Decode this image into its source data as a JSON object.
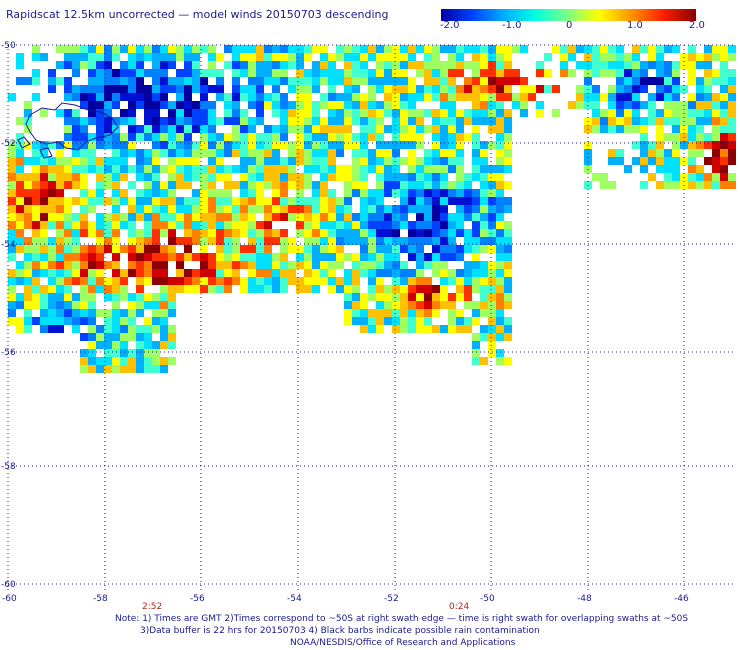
{
  "title": "Rapidscat 12.5km uncorrected — model winds 20150703 descending",
  "colorbar": {
    "labels": [
      "-2.0",
      "-1.0",
      "0",
      "1.0",
      "2.0"
    ],
    "min": -2.0,
    "max": 2.0,
    "colors": [
      "#0000a0",
      "#0040ff",
      "#00b0ff",
      "#00ffe0",
      "#80ff80",
      "#ffff00",
      "#ff9000",
      "#ff2000",
      "#8b0000"
    ]
  },
  "axes": {
    "lat_labels": [
      "-50",
      "-52",
      "-54",
      "-56",
      "-58",
      "-60"
    ],
    "lon_labels": [
      "-60",
      "-58",
      "-56",
      "-54",
      "-52",
      "-50",
      "-48",
      "-46"
    ]
  },
  "time_labels": [
    "2:52",
    "0:24"
  ],
  "notes": [
    "Note: 1) Times are GMT 2)Times correspond to ~50S at right swath edge — time is right swath for overlapping swaths at ~50S",
    "3)Data buffer is 22 hrs for 20150703 4) Black barbs indicate possible rain contamination",
    "NOAA/NESDIS/Office of Research and Applications"
  ]
}
